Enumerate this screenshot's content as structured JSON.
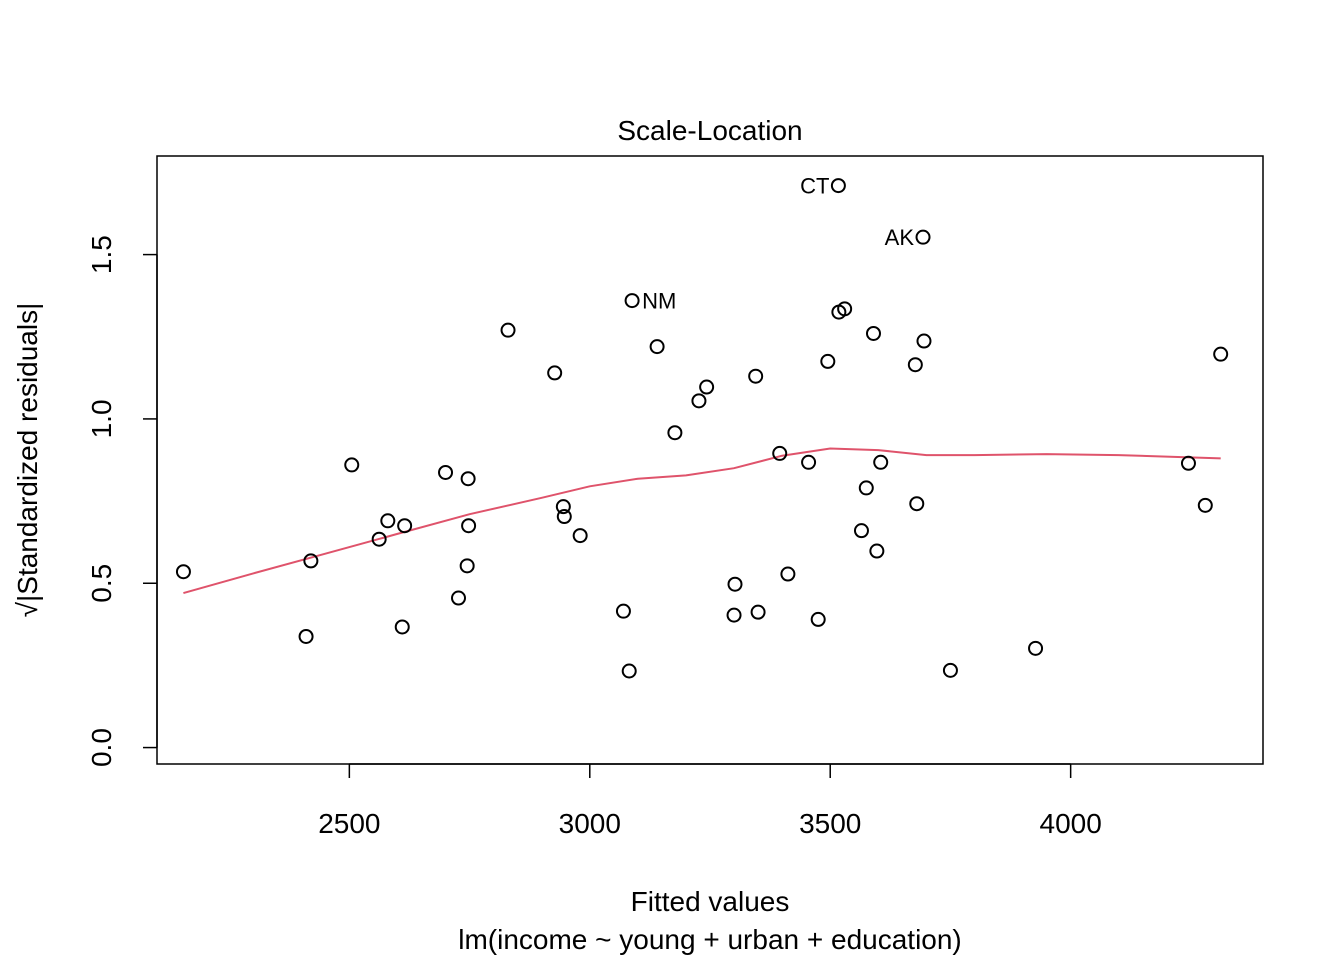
{
  "chart_data": {
    "type": "scatter",
    "title": "Scale-Location",
    "xlabel": "Fitted values",
    "xlabel_sub": "lm(income ~ young + urban + education)",
    "ylabel": "√|Standardized residuals|",
    "xlim": [
      2100,
      4400
    ],
    "ylim": [
      -0.05,
      1.8
    ],
    "xticks": [
      2500,
      3000,
      3500,
      4000
    ],
    "yticks": [
      0.0,
      0.5,
      1.0,
      1.5
    ],
    "xtick_labels": [
      "2500",
      "3000",
      "3500",
      "4000"
    ],
    "ytick_labels": [
      "0.0",
      "0.5",
      "1.0",
      "1.5"
    ],
    "grid": false,
    "point_color": "#000000",
    "smooth_color": "#DF536B",
    "points": [
      {
        "x": 2155,
        "y": 0.535
      },
      {
        "x": 2410,
        "y": 0.338
      },
      {
        "x": 2420,
        "y": 0.568
      },
      {
        "x": 2505,
        "y": 0.86
      },
      {
        "x": 2562,
        "y": 0.634
      },
      {
        "x": 2580,
        "y": 0.69
      },
      {
        "x": 2610,
        "y": 0.367
      },
      {
        "x": 2615,
        "y": 0.675
      },
      {
        "x": 2700,
        "y": 0.837
      },
      {
        "x": 2727,
        "y": 0.455
      },
      {
        "x": 2745,
        "y": 0.553
      },
      {
        "x": 2747,
        "y": 0.818
      },
      {
        "x": 2748,
        "y": 0.675
      },
      {
        "x": 2830,
        "y": 1.27
      },
      {
        "x": 2927,
        "y": 1.14
      },
      {
        "x": 2945,
        "y": 0.733
      },
      {
        "x": 2947,
        "y": 0.703
      },
      {
        "x": 2980,
        "y": 0.645
      },
      {
        "x": 3070,
        "y": 0.415
      },
      {
        "x": 3082,
        "y": 0.233
      },
      {
        "x": 3088,
        "y": 1.36,
        "label": "NM"
      },
      {
        "x": 3140,
        "y": 1.22
      },
      {
        "x": 3177,
        "y": 0.958
      },
      {
        "x": 3227,
        "y": 1.055
      },
      {
        "x": 3243,
        "y": 1.097
      },
      {
        "x": 3300,
        "y": 0.403
      },
      {
        "x": 3302,
        "y": 0.497
      },
      {
        "x": 3345,
        "y": 1.13
      },
      {
        "x": 3350,
        "y": 0.412
      },
      {
        "x": 3395,
        "y": 0.895
      },
      {
        "x": 3412,
        "y": 0.528
      },
      {
        "x": 3455,
        "y": 0.868
      },
      {
        "x": 3475,
        "y": 0.39
      },
      {
        "x": 3495,
        "y": 1.175
      },
      {
        "x": 3517,
        "y": 1.71,
        "label": "CT"
      },
      {
        "x": 3518,
        "y": 1.325
      },
      {
        "x": 3530,
        "y": 1.335
      },
      {
        "x": 3565,
        "y": 0.66
      },
      {
        "x": 3575,
        "y": 0.79
      },
      {
        "x": 3590,
        "y": 1.26
      },
      {
        "x": 3597,
        "y": 0.598
      },
      {
        "x": 3605,
        "y": 0.868
      },
      {
        "x": 3677,
        "y": 1.165
      },
      {
        "x": 3680,
        "y": 0.742
      },
      {
        "x": 3693,
        "y": 1.553,
        "label": "AK"
      },
      {
        "x": 3695,
        "y": 1.237
      },
      {
        "x": 3750,
        "y": 0.235
      },
      {
        "x": 3927,
        "y": 0.302
      },
      {
        "x": 4245,
        "y": 0.865
      },
      {
        "x": 4280,
        "y": 0.737
      },
      {
        "x": 4312,
        "y": 1.197
      }
    ],
    "smooth_line": [
      {
        "x": 2155,
        "y": 0.47
      },
      {
        "x": 2300,
        "y": 0.53
      },
      {
        "x": 2450,
        "y": 0.59
      },
      {
        "x": 2600,
        "y": 0.65
      },
      {
        "x": 2750,
        "y": 0.71
      },
      {
        "x": 2900,
        "y": 0.76
      },
      {
        "x": 3000,
        "y": 0.795
      },
      {
        "x": 3100,
        "y": 0.818
      },
      {
        "x": 3200,
        "y": 0.828
      },
      {
        "x": 3300,
        "y": 0.85
      },
      {
        "x": 3400,
        "y": 0.888
      },
      {
        "x": 3500,
        "y": 0.91
      },
      {
        "x": 3600,
        "y": 0.905
      },
      {
        "x": 3700,
        "y": 0.89
      },
      {
        "x": 3800,
        "y": 0.89
      },
      {
        "x": 3950,
        "y": 0.893
      },
      {
        "x": 4100,
        "y": 0.89
      },
      {
        "x": 4312,
        "y": 0.88
      }
    ]
  }
}
